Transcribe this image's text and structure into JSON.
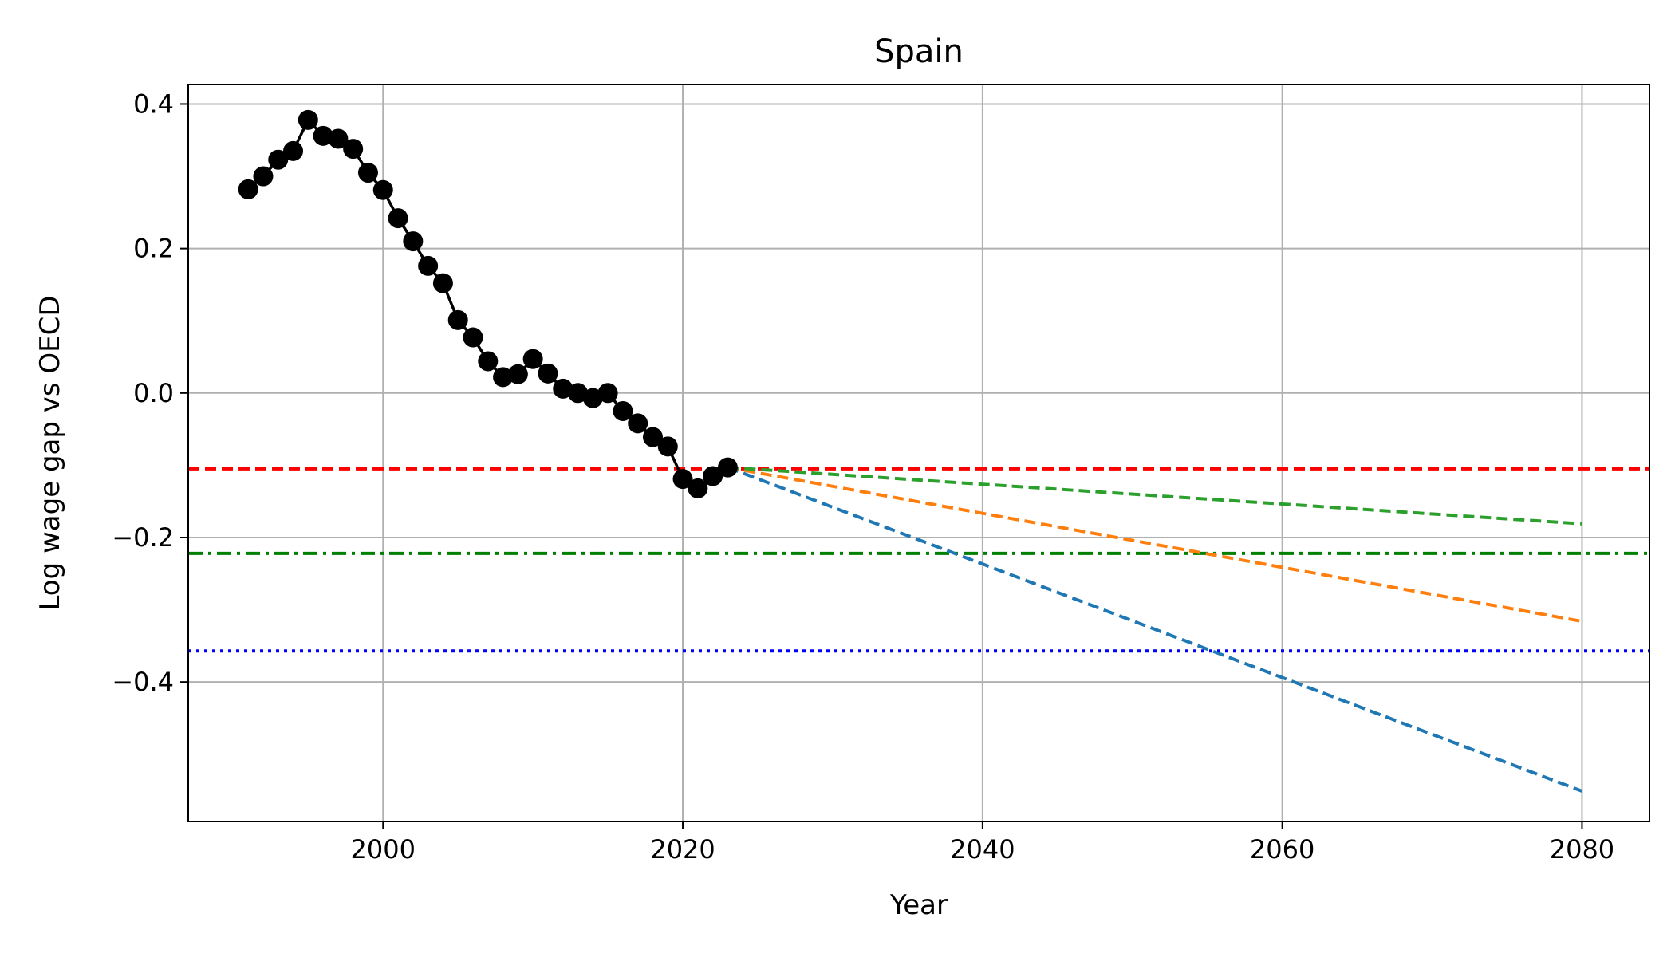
{
  "chart_data": {
    "type": "line",
    "title": "Spain",
    "xlabel": "Year",
    "ylabel": "Log wage gap vs OECD",
    "xlim": [
      1987,
      2084.5
    ],
    "ylim": [
      -0.593,
      0.427
    ],
    "xticks": [
      2000,
      2020,
      2040,
      2060,
      2080
    ],
    "xtick_labels": [
      "2000",
      "2020",
      "2040",
      "2060",
      "2080"
    ],
    "yticks": [
      0.4,
      0.2,
      0.0,
      -0.2,
      -0.4
    ],
    "ytick_labels": [
      "0.4",
      "0.2",
      "0.0",
      "−0.2",
      "−0.4"
    ],
    "grid": true,
    "series": [
      {
        "style": "solid-markers",
        "color": "#000000",
        "x": [
          1991,
          1992,
          1993,
          1994,
          1995,
          1996,
          1997,
          1998,
          1999,
          2000,
          2001,
          2002,
          2003,
          2004,
          2005,
          2006,
          2007,
          2008,
          2009,
          2010,
          2011,
          2012,
          2013,
          2014,
          2015,
          2016,
          2017,
          2018,
          2019,
          2020,
          2021,
          2022,
          2023
        ],
        "y": [
          0.282,
          0.3,
          0.323,
          0.335,
          0.378,
          0.356,
          0.352,
          0.338,
          0.305,
          0.281,
          0.242,
          0.21,
          0.176,
          0.152,
          0.101,
          0.077,
          0.044,
          0.022,
          0.026,
          0.047,
          0.027,
          0.006,
          0.0,
          -0.007,
          0.0,
          -0.025,
          -0.042,
          -0.061,
          -0.074,
          -0.119,
          -0.132,
          -0.115,
          -0.103
        ]
      },
      {
        "style": "dashed",
        "color": "#1f77b4",
        "x": [
          2023,
          2080
        ],
        "y": [
          -0.103,
          -0.551
        ]
      },
      {
        "style": "dashed",
        "color": "#ff7f0e",
        "x": [
          2023,
          2080
        ],
        "y": [
          -0.103,
          -0.316
        ]
      },
      {
        "style": "dashed",
        "color": "#2ca02c",
        "x": [
          2023,
          2080
        ],
        "y": [
          -0.103,
          -0.181
        ]
      }
    ],
    "hlines": [
      {
        "y": -0.105,
        "style": "dashed",
        "color": "#ff0000"
      },
      {
        "y": -0.222,
        "style": "dashdot",
        "color": "#008000"
      },
      {
        "y": -0.357,
        "style": "dotted",
        "color": "#0000ff"
      }
    ]
  }
}
